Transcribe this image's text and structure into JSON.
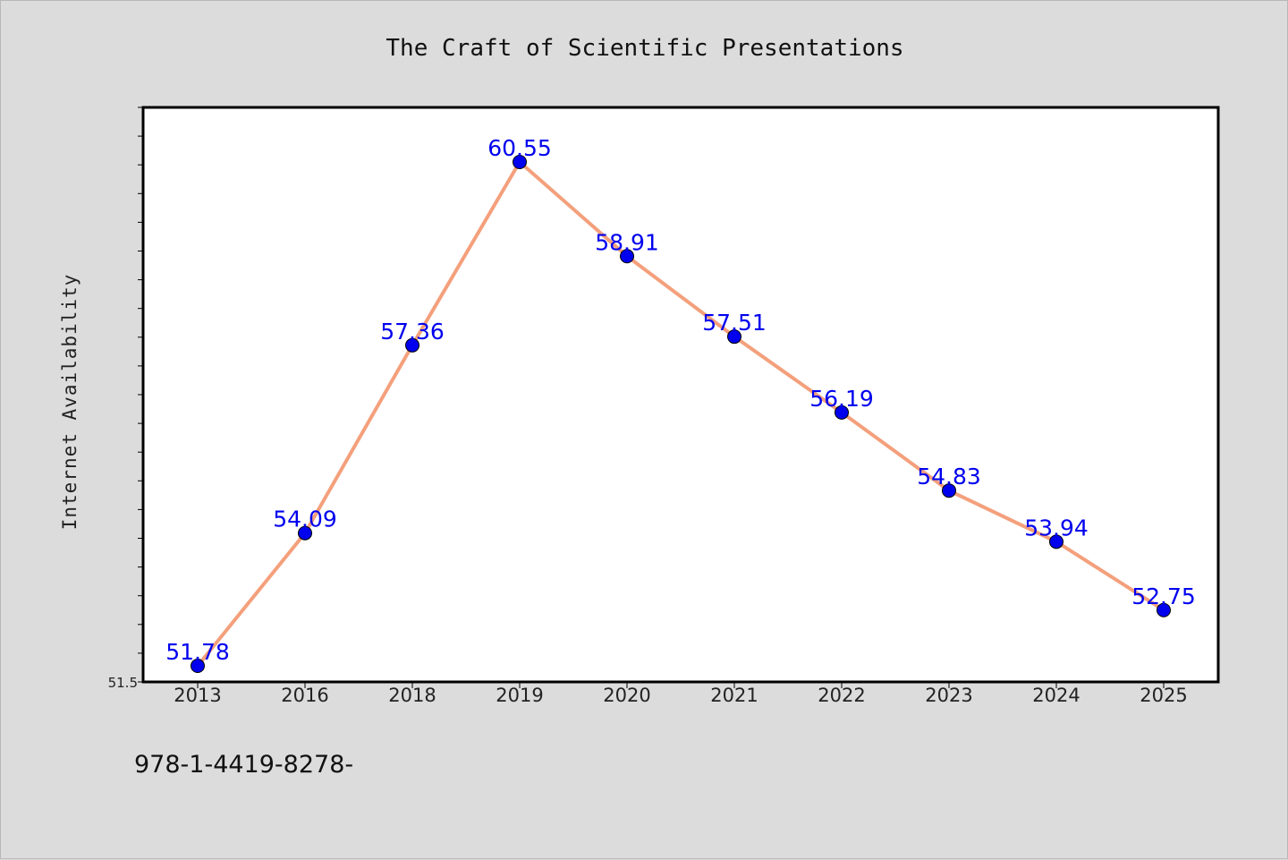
{
  "chart_data": {
    "type": "line",
    "title": "The Craft of Scientific Presentations",
    "xlabel": "",
    "ylabel": "Internet Availability",
    "categories": [
      "2013",
      "2016",
      "2018",
      "2019",
      "2020",
      "2021",
      "2022",
      "2023",
      "2024",
      "2025"
    ],
    "series": [
      {
        "values": [
          51.78,
          54.09,
          57.36,
          60.55,
          58.91,
          57.51,
          56.19,
          54.83,
          53.94,
          52.75
        ],
        "labels": [
          "51.78",
          "54.09",
          "57.36",
          "60.55",
          "58.91",
          "57.51",
          "56.19",
          "54.83",
          "53.94",
          "52.75"
        ]
      }
    ],
    "ylim": [
      51.5,
      61.5
    ],
    "yticks_labeled": [
      "51.5"
    ],
    "grid": false,
    "legend": "none"
  },
  "colors": {
    "line": "#f4a07c",
    "marker": "#0000ee",
    "data_label": "#0000ee",
    "background": "#dcdcdc",
    "plot_area": "#ffffff"
  },
  "footer": {
    "text": "978-1-4419-8278-"
  }
}
